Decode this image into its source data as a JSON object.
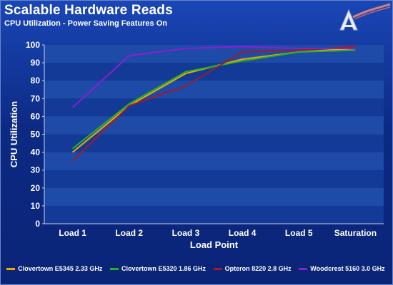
{
  "header": {
    "title": "Scalable Hardware Reads",
    "subtitle": "CPU Utilization - Power Saving Features On"
  },
  "colors": {
    "grid_band": "#1e4aa8",
    "axis_text": "#ffffff"
  },
  "chart_data": {
    "type": "line",
    "xlabel": "Load Point",
    "ylabel": "CPU Utilization",
    "categories": [
      "Load 1",
      "Load 2",
      "Load 3",
      "Load 4",
      "Load 5",
      "Saturation"
    ],
    "ylim": [
      0,
      100
    ],
    "yticks": [
      0,
      10,
      20,
      30,
      40,
      50,
      60,
      70,
      80,
      90,
      100
    ],
    "grid": true,
    "legend_position": "bottom",
    "series": [
      {
        "name": "Clovertown E5345 2.33 GHz",
        "color": "#f2a800",
        "values": [
          40,
          66,
          84,
          92,
          96,
          98
        ]
      },
      {
        "name": "Clovertown E5320 1.86 GHz",
        "color": "#22b422",
        "values": [
          42,
          67,
          85,
          91,
          96,
          97
        ]
      },
      {
        "name": "Opteron 8220 2.8 GHz",
        "color": "#a01c2c",
        "values": [
          35,
          66,
          77,
          96,
          97,
          99
        ]
      },
      {
        "name": "Woodcrest 5160 3.0 GHz",
        "color": "#8a1fd0",
        "values": [
          65,
          94,
          98,
          99,
          98,
          98
        ]
      }
    ]
  }
}
